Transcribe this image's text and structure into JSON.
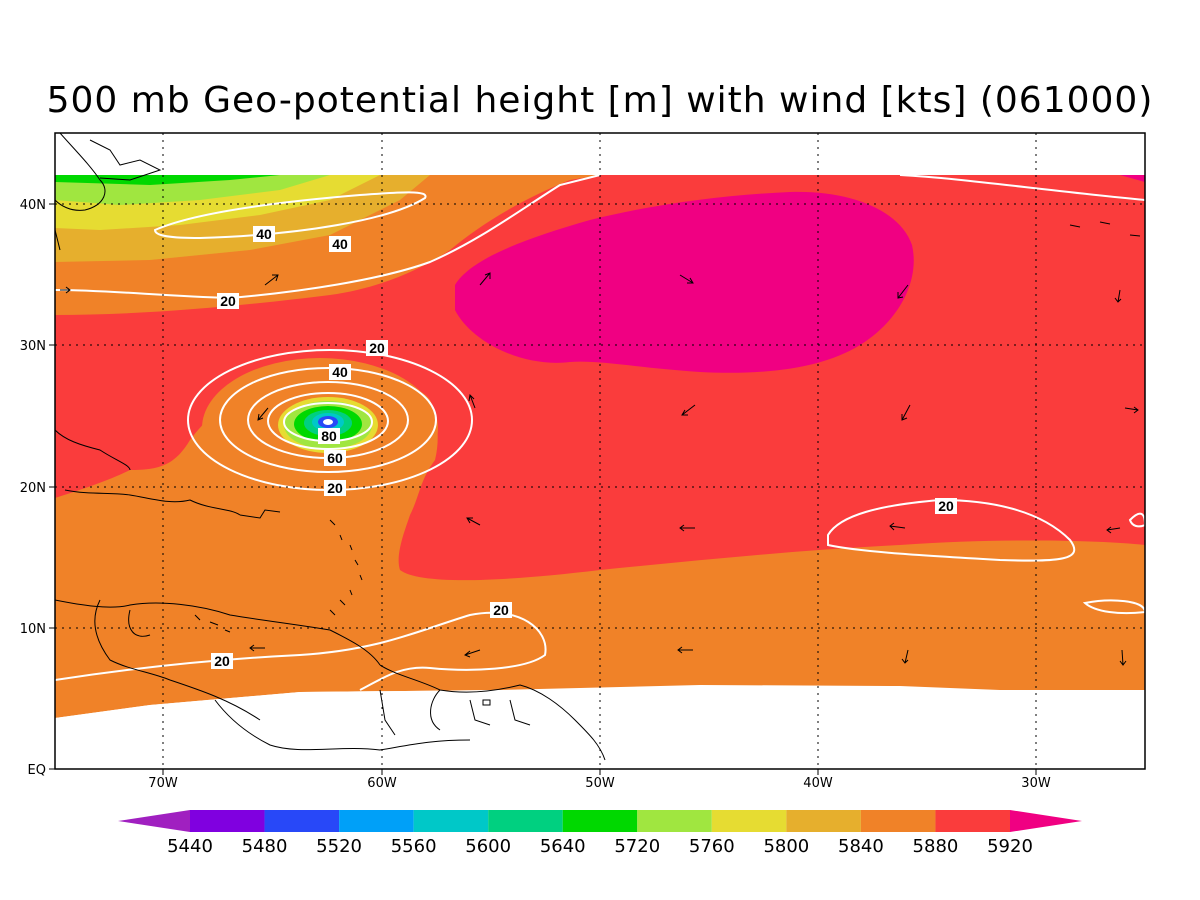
{
  "title": "500 mb Geo-potential height [m] with wind [kts] (061000)",
  "axes": {
    "x_ticks": [
      "70W",
      "60W",
      "50W",
      "40W",
      "30W"
    ],
    "y_ticks": [
      "40N",
      "30N",
      "20N",
      "10N",
      "EQ"
    ]
  },
  "colorbar": {
    "levels": [
      "5440",
      "5480",
      "5520",
      "5560",
      "5600",
      "5640",
      "5720",
      "5760",
      "5800",
      "5840",
      "5880",
      "5920"
    ],
    "colors": [
      "#a020c0",
      "#8000e0",
      "#2848f8",
      "#00a0f8",
      "#00c8c8",
      "#00d080",
      "#00d800",
      "#a0e640",
      "#e6dc32",
      "#e6af2d",
      "#f08228",
      "#fa3c3c",
      "#f00082"
    ]
  },
  "contour_labels": [
    "40",
    "40",
    "20",
    "20",
    "40",
    "80",
    "60",
    "20",
    "20",
    "20",
    "20"
  ],
  "fill_colors": {
    "ocean_orange": "#f08228",
    "red": "#fa3c3c",
    "magenta": "#f00082",
    "gold": "#e6af2d",
    "yellow": "#e6dc32",
    "lightgreen": "#a0e640",
    "green": "#00d800",
    "teal": "#00c8c8",
    "blue": "#2848f8"
  }
}
